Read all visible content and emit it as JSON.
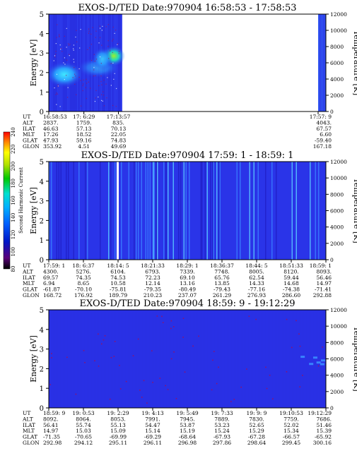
{
  "chart_data": [
    {
      "type": "heatmap",
      "title": "EXOS-D/TED   Date:970904   16:58:53 - 17:58:53",
      "ylabel": "Energy [eV]",
      "ylabel_right": "Temperature [K]",
      "ylim": [
        0,
        5
      ],
      "yticks": [
        "0",
        "1",
        "2",
        "3",
        "4",
        "5"
      ],
      "ylim_right": [
        0,
        12000
      ],
      "yticks_right": [
        "0",
        "2000",
        "4000",
        "6000",
        "8000",
        "10000",
        "12000"
      ],
      "ut_columns": [
        "16:58:53",
        "17: 6:29",
        "17:13:57",
        "17:57: 9"
      ],
      "ut_positions": [
        0,
        0.1267,
        0.2513,
        0.9719
      ],
      "data_extent": [
        [
          0,
          0.265
        ],
        [
          0.972,
          1.0
        ]
      ],
      "orbit_rows": [
        {
          "label": "UT",
          "values": [
            "16:58:53",
            "17: 6:29",
            "17:13:57",
            "17:57: 9"
          ]
        },
        {
          "label": "ALT",
          "values": [
            "2837.",
            "1759.",
            "835.",
            "4043."
          ]
        },
        {
          "label": "ILAT",
          "values": [
            "46.63",
            "57.13",
            "70.13",
            "67.57"
          ]
        },
        {
          "label": "MLT",
          "values": [
            "17.26",
            "18.52",
            "22.05",
            "6.60"
          ]
        },
        {
          "label": "GLAT",
          "values": [
            "47.93",
            "59.16",
            "74.83",
            "-59.40"
          ]
        },
        {
          "label": "GLON",
          "values": [
            "353.92",
            "4.51",
            "49.69",
            "167.18"
          ]
        }
      ]
    },
    {
      "type": "heatmap",
      "title": "EXOS-D/TED   Date:970904   17:59: 1 - 18:59: 1",
      "ylabel": "Energy [eV]",
      "ylabel_right": "Temperature [K]",
      "ylim": [
        0,
        5
      ],
      "yticks": [
        "0",
        "1",
        "2",
        "3",
        "4",
        "5"
      ],
      "ylim_right": [
        0,
        12000
      ],
      "yticks_right": [
        "0",
        "2000",
        "4000",
        "6000",
        "8000",
        "10000",
        "12000"
      ],
      "ut_columns": [
        "17:59: 1",
        "18: 6:37",
        "18:14: 5",
        "18:21:33",
        "18:29: 1",
        "18:36:37",
        "18:44: 5",
        "18:51:33",
        "18:59: 1"
      ],
      "ut_positions": [
        0,
        0.125,
        0.25,
        0.375,
        0.5,
        0.625,
        0.75,
        0.875,
        1.0
      ],
      "orbit_rows": [
        {
          "label": "UT",
          "values": [
            "17:59: 1",
            "18: 6:37",
            "18:14: 5",
            "18:21:33",
            "18:29: 1",
            "18:36:37",
            "18:44: 5",
            "18:51:33",
            "18:59: 1"
          ]
        },
        {
          "label": "ALT",
          "values": [
            "4300.",
            "5276.",
            "6104.",
            "6793.",
            "7339.",
            "7748.",
            "8005.",
            "8120.",
            "8093."
          ]
        },
        {
          "label": "ILAT",
          "values": [
            "69.57",
            "74.35",
            "74.53",
            "72.23",
            "69.10",
            "65.76",
            "62.54",
            "59.44",
            "56.46"
          ]
        },
        {
          "label": "MLT",
          "values": [
            "6.94",
            "8.65",
            "10.58",
            "12.14",
            "13.16",
            "13.85",
            "14.33",
            "14.68",
            "14.97"
          ]
        },
        {
          "label": "GLAT",
          "values": [
            "-61.87",
            "-70.10",
            "-75.81",
            "-79.35",
            "-80.49",
            "-79.43",
            "-77.16",
            "-74.38",
            "-71.41"
          ]
        },
        {
          "label": "GLON",
          "values": [
            "168.72",
            "176.92",
            "189.79",
            "210.23",
            "237.07",
            "261.29",
            "276.93",
            "286.60",
            "292.88"
          ]
        }
      ]
    },
    {
      "type": "heatmap",
      "title": "EXOS-D/TED   Date:970904   18:59: 9 - 19:12:29",
      "ylabel": "Energy [eV]",
      "ylabel_right": "Temperature [K]",
      "ylim": [
        0,
        5
      ],
      "yticks": [
        "0",
        "1",
        "2",
        "3",
        "4",
        "5"
      ],
      "ylim_right": [
        0,
        12000
      ],
      "yticks_right": [
        "0",
        "2000",
        "4000",
        "6000",
        "8000",
        "10000",
        "12000"
      ],
      "ut_columns": [
        "18:59: 9",
        "19: 0:53",
        "19: 2:29",
        "19: 4:13",
        "19: 5:49",
        "19: 7:33",
        "19: 9: 9",
        "19:10:53",
        "19:12:29"
      ],
      "ut_positions": [
        0,
        0.125,
        0.25,
        0.375,
        0.5,
        0.625,
        0.75,
        0.875,
        1.0
      ],
      "orbit_rows": [
        {
          "label": "UT",
          "values": [
            "18:59: 9",
            "19: 0:53",
            "19: 2:29",
            "19: 4:13",
            "19: 5:49",
            "19: 7:33",
            "19: 9: 9",
            "19:10:53",
            "19:12:29"
          ]
        },
        {
          "label": "ALT",
          "values": [
            "8092.",
            "8064.",
            "8053.",
            "7991.",
            "7945.",
            "7889.",
            "7830.",
            "7759.",
            "7686."
          ]
        },
        {
          "label": "ILAT",
          "values": [
            "56.41",
            "55.74",
            "55.13",
            "54.47",
            "53.87",
            "53.23",
            "52.65",
            "52.02",
            "51.46"
          ]
        },
        {
          "label": "MLT",
          "values": [
            "14.97",
            "15.03",
            "15.09",
            "15.14",
            "15.19",
            "15.24",
            "15.29",
            "15.34",
            "15.39"
          ]
        },
        {
          "label": "GLAT",
          "values": [
            "-71.35",
            "-70.65",
            "-69.99",
            "-69.29",
            "-68.64",
            "-67.93",
            "-67.28",
            "-66.57",
            "-65.92"
          ]
        },
        {
          "label": "GLON",
          "values": [
            "292.98",
            "294.12",
            "295.11",
            "296.11",
            "296.98",
            "297.86",
            "298.64",
            "299.45",
            "300.16"
          ]
        }
      ]
    }
  ],
  "colorbar": {
    "label": "Second Harmonic Current",
    "ticks": [
      "80",
      "100",
      "120",
      "140",
      "160",
      "180",
      "200",
      "220",
      "240"
    ],
    "range": [
      80,
      240
    ],
    "colors": [
      "#000000",
      "#5a007a",
      "#0018c8",
      "#0060ff",
      "#00b0ff",
      "#00e0d0",
      "#00c800",
      "#b0e000",
      "#ffff00",
      "#ff8000",
      "#ff0000"
    ]
  }
}
